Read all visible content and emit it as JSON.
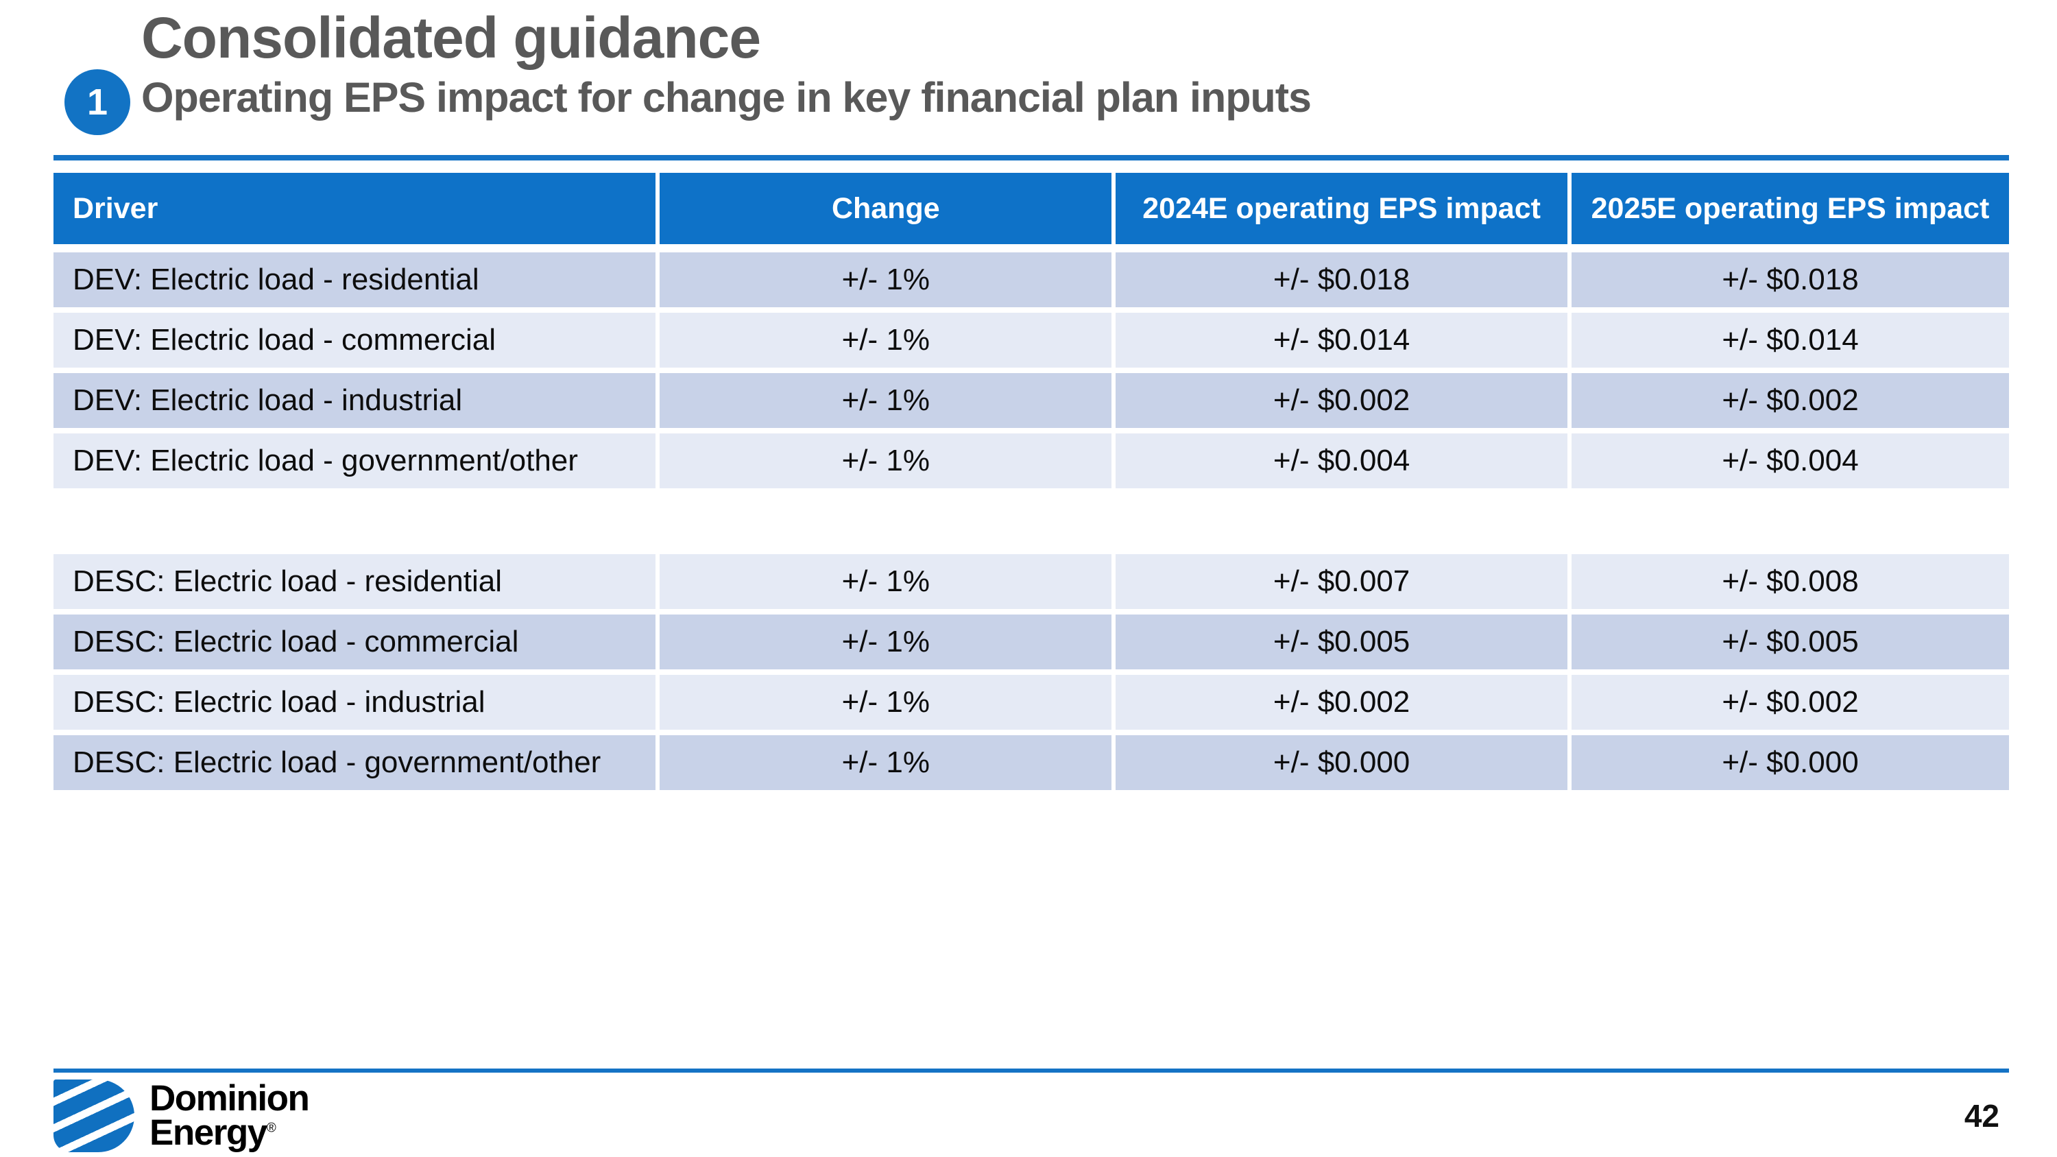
{
  "slide": {
    "badge_label": "1",
    "title": "Consolidated guidance",
    "subtitle": "Operating EPS impact for change in key financial plan inputs",
    "page_number": "42"
  },
  "table": {
    "headers": [
      "Driver",
      "Change",
      "2024E operating EPS impact",
      "2025E operating EPS impact"
    ],
    "groups": [
      {
        "rows": [
          {
            "driver": "DEV: Electric load - residential",
            "change": "+/- 1%",
            "eps_2024": "+/- $0.018",
            "eps_2025": "+/- $0.018",
            "shade": "dark"
          },
          {
            "driver": "DEV: Electric load - commercial",
            "change": "+/- 1%",
            "eps_2024": "+/- $0.014",
            "eps_2025": "+/- $0.014",
            "shade": "light"
          },
          {
            "driver": "DEV: Electric load - industrial",
            "change": "+/- 1%",
            "eps_2024": "+/- $0.002",
            "eps_2025": "+/- $0.002",
            "shade": "dark"
          },
          {
            "driver": "DEV: Electric load - government/other",
            "change": "+/- 1%",
            "eps_2024": "+/- $0.004",
            "eps_2025": "+/- $0.004",
            "shade": "light"
          }
        ]
      },
      {
        "rows": [
          {
            "driver": "DESC: Electric load - residential",
            "change": "+/- 1%",
            "eps_2024": "+/- $0.007",
            "eps_2025": "+/- $0.008",
            "shade": "light"
          },
          {
            "driver": "DESC: Electric load - commercial",
            "change": "+/- 1%",
            "eps_2024": "+/- $0.005",
            "eps_2025": "+/- $0.005",
            "shade": "dark"
          },
          {
            "driver": "DESC: Electric load - industrial",
            "change": "+/- 1%",
            "eps_2024": "+/- $0.002",
            "eps_2025": "+/- $0.002",
            "shade": "light"
          },
          {
            "driver": "DESC: Electric load - government/other",
            "change": "+/- 1%",
            "eps_2024": "+/- $0.000",
            "eps_2025": "+/- $0.000",
            "shade": "dark"
          }
        ]
      }
    ]
  },
  "footer": {
    "logo_text_line1": "Dominion",
    "logo_text_line2": "Energy",
    "registered_mark": "®"
  },
  "colors": {
    "header_blue": "#0e72c8",
    "rule_blue": "#1573c5",
    "row_dark": "#c8d2e8",
    "row_light": "#e5eaf5",
    "title_gray": "#595959",
    "badge_blue": "#1273c4",
    "logo_blue": "#1070c0"
  }
}
